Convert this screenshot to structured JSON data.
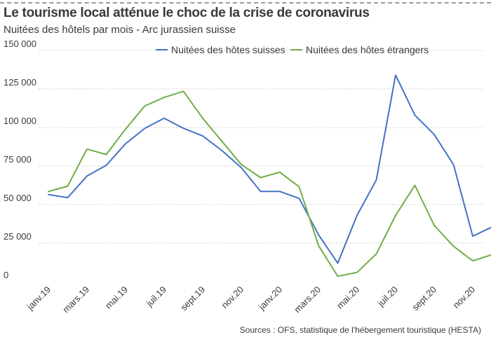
{
  "header": {
    "title": "Le tourisme local atténue le choc de la crise de coronavirus",
    "subtitle": "Nuitées des hôtels par mois - Arc jurassien suisse"
  },
  "footer": {
    "source": "Sources : OFS, statistique de l'hébergement touristique (HESTA)"
  },
  "chart_data": {
    "type": "line",
    "title": "Le tourisme local atténue le choc de la crise de coronavirus",
    "subtitle": "Nuitées des hôtels par mois - Arc jurassien suisse",
    "xlabel": "",
    "ylabel": "",
    "ylim": [
      0,
      150000
    ],
    "yticks": [
      "0",
      "25 000",
      "50 000",
      "75 000",
      "100 000",
      "125 000",
      "150 000"
    ],
    "y_tick_values": [
      0,
      25000,
      50000,
      75000,
      100000,
      125000,
      150000
    ],
    "grid": "horizontal dashed",
    "legend": "top",
    "x_labels": [
      "janv.19",
      "mars.19",
      "mai.19",
      "juil.19",
      "sept.19",
      "nov.20",
      "janv.20",
      "mars.20",
      "mai.20",
      "juil.20",
      "sept.20",
      "nov.20"
    ],
    "series": [
      {
        "name": "Nuitées des hôtes suisses",
        "color": "#4472c4",
        "values": [
          56500,
          54500,
          68500,
          75500,
          89500,
          99500,
          106000,
          99500,
          94500,
          85000,
          74000,
          58500,
          58500,
          54000,
          30500,
          12000,
          43000,
          66000,
          134000,
          108000,
          95500,
          76000,
          29500,
          35500
        ]
      },
      {
        "name": "Nuitées des hôtes étrangers",
        "color": "#70ad47",
        "values": [
          58500,
          62000,
          86000,
          82500,
          99000,
          114000,
          119500,
          123500,
          106000,
          91000,
          76000,
          67500,
          71000,
          61500,
          23500,
          3500,
          6000,
          18000,
          43000,
          62500,
          36500,
          23000,
          13500,
          17500
        ]
      }
    ]
  }
}
